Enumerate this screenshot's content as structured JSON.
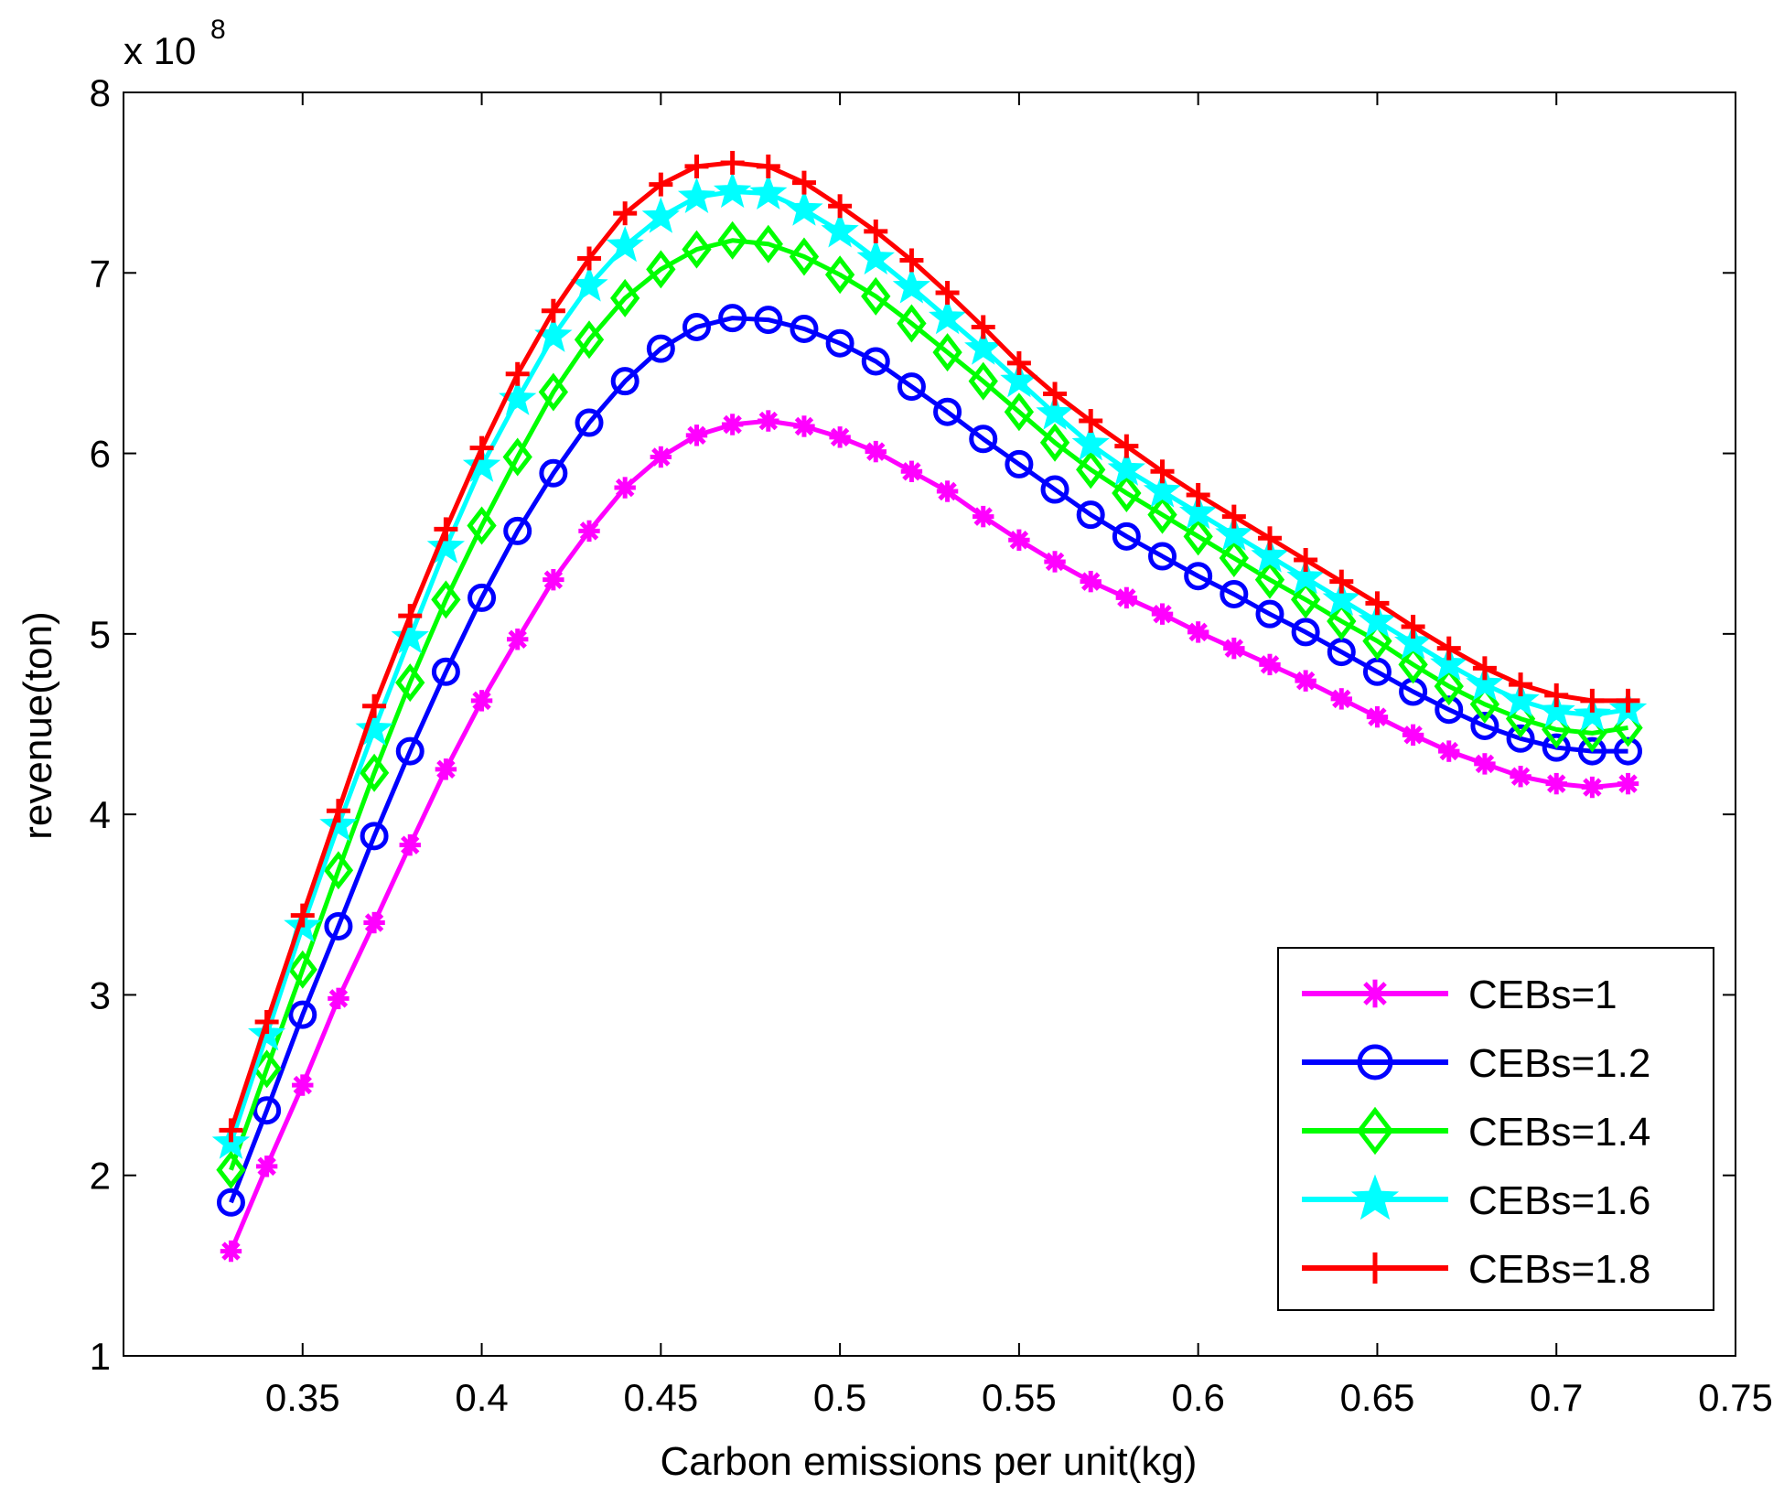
{
  "chart_data": {
    "type": "line",
    "title": "",
    "xlabel": "Carbon emissions per unit(kg)",
    "ylabel": "revenue(ton)",
    "y_multiplier": {
      "base": "x 10",
      "exponent": "8"
    },
    "xlim": [
      0.3,
      0.75
    ],
    "ylim": [
      1,
      8
    ],
    "x_ticks": [
      "0.35",
      "0.4",
      "0.45",
      "0.5",
      "0.55",
      "0.6",
      "0.65",
      "0.7",
      "0.75"
    ],
    "x_tick_values": [
      0.35,
      0.4,
      0.45,
      0.5,
      0.55,
      0.6,
      0.65,
      0.7,
      0.75
    ],
    "y_ticks": [
      "1",
      "2",
      "3",
      "4",
      "5",
      "6",
      "7",
      "8"
    ],
    "y_tick_values": [
      1,
      2,
      3,
      4,
      5,
      6,
      7,
      8
    ],
    "grid": false,
    "legend_position": "bottom-right",
    "x": [
      0.33,
      0.34,
      0.35,
      0.36,
      0.37,
      0.38,
      0.39,
      0.4,
      0.41,
      0.42,
      0.43,
      0.44,
      0.45,
      0.46,
      0.47,
      0.48,
      0.49,
      0.5,
      0.51,
      0.52,
      0.53,
      0.54,
      0.55,
      0.56,
      0.57,
      0.58,
      0.59,
      0.6,
      0.61,
      0.62,
      0.63,
      0.64,
      0.65,
      0.66,
      0.67,
      0.68,
      0.69,
      0.7,
      0.71,
      0.72
    ],
    "series": [
      {
        "name": "CEBs=1",
        "color": "#ff00ff",
        "marker": "asterisk",
        "values": [
          1.58,
          2.05,
          2.5,
          2.98,
          3.4,
          3.83,
          4.25,
          4.63,
          4.97,
          5.3,
          5.57,
          5.81,
          5.98,
          6.1,
          6.16,
          6.18,
          6.15,
          6.09,
          6.01,
          5.9,
          5.79,
          5.65,
          5.52,
          5.4,
          5.29,
          5.2,
          5.11,
          5.01,
          4.92,
          4.83,
          4.74,
          4.64,
          4.54,
          4.44,
          4.35,
          4.28,
          4.21,
          4.17,
          4.15,
          4.17
        ]
      },
      {
        "name": "CEBs=1.2",
        "color": "#0000ff",
        "marker": "circle",
        "values": [
          1.85,
          2.36,
          2.89,
          3.38,
          3.88,
          4.35,
          4.79,
          5.2,
          5.57,
          5.89,
          6.17,
          6.4,
          6.58,
          6.7,
          6.75,
          6.74,
          6.69,
          6.61,
          6.51,
          6.37,
          6.23,
          6.08,
          5.94,
          5.8,
          5.66,
          5.54,
          5.43,
          5.32,
          5.22,
          5.11,
          5.01,
          4.9,
          4.79,
          4.68,
          4.58,
          4.49,
          4.42,
          4.37,
          4.35,
          4.35
        ]
      },
      {
        "name": "CEBs=1.4",
        "color": "#00ff00",
        "marker": "diamond",
        "values": [
          2.03,
          2.59,
          3.14,
          3.69,
          4.23,
          4.73,
          5.19,
          5.6,
          5.98,
          6.34,
          6.63,
          6.86,
          7.02,
          7.13,
          7.18,
          7.16,
          7.09,
          6.99,
          6.87,
          6.72,
          6.56,
          6.4,
          6.23,
          6.06,
          5.91,
          5.78,
          5.66,
          5.54,
          5.42,
          5.3,
          5.19,
          5.07,
          4.96,
          4.83,
          4.71,
          4.61,
          4.53,
          4.47,
          4.45,
          4.48
        ]
      },
      {
        "name": "CEBs=1.6",
        "color": "#00ffff",
        "marker": "star",
        "values": [
          2.18,
          2.78,
          3.38,
          3.94,
          4.47,
          4.98,
          5.48,
          5.93,
          6.3,
          6.65,
          6.93,
          7.15,
          7.31,
          7.42,
          7.45,
          7.44,
          7.35,
          7.23,
          7.08,
          6.92,
          6.75,
          6.58,
          6.4,
          6.22,
          6.05,
          5.91,
          5.79,
          5.67,
          5.55,
          5.43,
          5.31,
          5.19,
          5.07,
          4.95,
          4.83,
          4.72,
          4.63,
          4.57,
          4.55,
          4.58
        ]
      },
      {
        "name": "CEBs=1.8",
        "color": "#ff0000",
        "marker": "plus",
        "values": [
          2.25,
          2.85,
          3.44,
          4.02,
          4.6,
          5.1,
          5.58,
          6.03,
          6.44,
          6.79,
          7.08,
          7.33,
          7.49,
          7.59,
          7.61,
          7.59,
          7.5,
          7.37,
          7.23,
          7.07,
          6.89,
          6.7,
          6.5,
          6.33,
          6.18,
          6.04,
          5.9,
          5.77,
          5.65,
          5.53,
          5.41,
          5.29,
          5.17,
          5.04,
          4.92,
          4.81,
          4.72,
          4.66,
          4.63,
          4.63
        ]
      }
    ]
  }
}
